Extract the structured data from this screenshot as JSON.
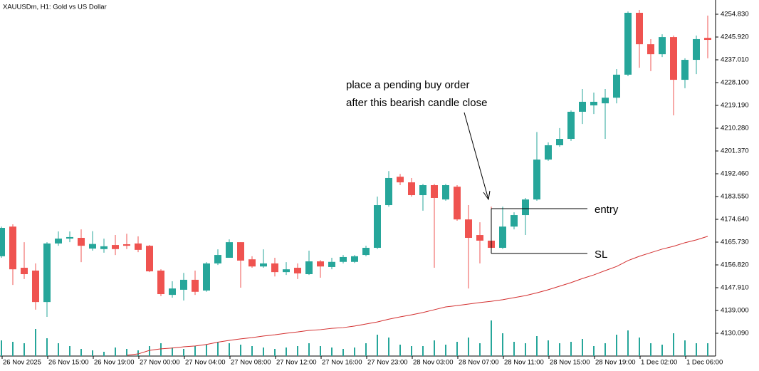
{
  "chart_data": {
    "type": "candlestick",
    "title": "XAUUSDm, H1:  Gold vs US Dollar",
    "up_color": "#26a69a",
    "down_color": "#ef5350",
    "categories": [
      "26 Nov 2025",
      null,
      null,
      null,
      "26 Nov 15:00",
      null,
      null,
      null,
      "26 Nov 19:00",
      null,
      null,
      null,
      "27 Nov 00:00",
      null,
      null,
      null,
      "27 Nov 04:00",
      null,
      null,
      null,
      "27 Nov 08:00",
      null,
      null,
      null,
      "27 Nov 12:00",
      null,
      null,
      null,
      "27 Nov 16:00",
      null,
      null,
      null,
      "27 Nov 23:00",
      null,
      null,
      null,
      "28 Nov 03:00",
      null,
      null,
      null,
      "28 Nov 07:00",
      null,
      null,
      null,
      "28 Nov 11:00",
      null,
      null,
      null,
      "28 Nov 15:00",
      null,
      null,
      null,
      "28 Nov 19:00",
      null,
      null,
      null,
      "1 Dec 02:00",
      null,
      null,
      null,
      "1 Dec 06:00",
      null,
      null
    ],
    "open": [
      4160.2,
      4171.8,
      4155.7,
      4154.6,
      4142.3,
      4165.2,
      4167.1,
      4167.4,
      4163.2,
      4163.0,
      4164.6,
      4164.9,
      4165.2,
      4164.3,
      4154.6,
      4145.1,
      4147.1,
      4151.0,
      4146.8,
      4157.4,
      4159.6,
      4165.7,
      4159.0,
      4156.2,
      4157.4,
      4154.0,
      4155.7,
      4153.2,
      4158.2,
      4156.0,
      4158.0,
      4158.0,
      4160.7,
      4163.5,
      4180.2,
      4191.3,
      4189.1,
      4184.1,
      4188.0,
      4182.4,
      4187.4,
      4174.6,
      4168.5,
      4166.3,
      4163.5,
      4171.8,
      4176.3,
      4182.4,
      4198.0,
      4203.6,
      4206.1,
      4216.7,
      4219.2,
      4220.0,
      4222.2,
      4231.2,
      4255.4,
      4243.1,
      4239.2,
      4245.9,
      4229.2,
      4237.0,
      4245.6
    ],
    "high": [
      4171.8,
      4172.7,
      4165.7,
      4157.4,
      4165.7,
      4169.9,
      4169.9,
      4170.7,
      4170.0,
      4167.1,
      4168.5,
      4169.0,
      4168.0,
      4164.6,
      4155.1,
      4150.4,
      4153.7,
      4154.6,
      4157.9,
      4162.9,
      4166.8,
      4165.7,
      4160.2,
      4162.9,
      4159.6,
      4157.9,
      4157.4,
      4162.4,
      4158.7,
      4159.6,
      4160.7,
      4160.7,
      4164.3,
      4183.5,
      4193.5,
      4192.4,
      4190.8,
      4188.5,
      4188.5,
      4188.5,
      4188.0,
      4180.2,
      4173.5,
      4179.6,
      4179.6,
      4177.4,
      4183.0,
      4208.8,
      4204.7,
      4210.3,
      4217.2,
      4225.6,
      4224.2,
      4225.6,
      4233.4,
      4255.9,
      4256.5,
      4245.1,
      4247.0,
      4246.5,
      4237.6,
      4246.5,
      4254.3
    ],
    "low": [
      4159.6,
      4149.0,
      4151.3,
      4139.3,
      4136.5,
      4164.3,
      4165.7,
      4157.9,
      4162.4,
      4161.6,
      4160.7,
      4163.0,
      4161.8,
      4154.0,
      4144.6,
      4144.0,
      4142.9,
      4145.1,
      4146.3,
      4156.8,
      4159.6,
      4147.9,
      4155.7,
      4155.7,
      4152.3,
      4152.9,
      4151.3,
      4152.9,
      4151.8,
      4155.1,
      4157.4,
      4157.6,
      4160.2,
      4163.0,
      4179.6,
      4188.0,
      4183.5,
      4178.0,
      4155.7,
      4181.9,
      4174.1,
      4147.6,
      4157.4,
      4163.0,
      4163.0,
      4170.7,
      4168.5,
      4181.9,
      4197.5,
      4203.0,
      4205.3,
      4211.9,
      4215.8,
      4206.1,
      4220.0,
      4230.6,
      4233.9,
      4232.6,
      4238.1,
      4215.3,
      4225.9,
      4231.4,
      4237.6
    ],
    "close": [
      4171.3,
      4155.1,
      4153.2,
      4142.3,
      4165.2,
      4167.1,
      4167.7,
      4164.3,
      4165.0,
      4164.1,
      4163.0,
      4164.3,
      4162.7,
      4154.3,
      4145.4,
      4147.6,
      4151.0,
      4146.3,
      4157.4,
      4160.7,
      4165.7,
      4158.5,
      4156.2,
      4157.4,
      4154.0,
      4155.1,
      4153.5,
      4158.2,
      4156.2,
      4158.0,
      4159.9,
      4160.2,
      4163.5,
      4180.2,
      4190.8,
      4189.1,
      4184.1,
      4188.0,
      4183.0,
      4188.0,
      4174.6,
      4167.4,
      4166.3,
      4163.5,
      4171.8,
      4176.3,
      4182.4,
      4198.0,
      4203.6,
      4206.1,
      4216.7,
      4220.6,
      4220.6,
      4222.2,
      4231.2,
      4255.4,
      4243.1,
      4239.2,
      4245.9,
      4229.2,
      4237.0,
      4245.1,
      4244.8
    ],
    "volume": [
      22,
      20,
      18,
      38,
      25,
      18,
      14,
      10,
      8,
      6,
      12,
      10,
      8,
      14,
      18,
      12,
      10,
      14,
      16,
      20,
      18,
      16,
      14,
      12,
      10,
      12,
      14,
      18,
      14,
      12,
      10,
      12,
      18,
      30,
      26,
      16,
      14,
      14,
      22,
      16,
      20,
      26,
      18,
      50,
      32,
      20,
      18,
      28,
      22,
      18,
      20,
      24,
      14,
      18,
      30,
      36,
      26,
      18,
      16,
      32,
      22,
      18,
      18
    ],
    "volume_color": "#26a69a",
    "ma": {
      "color": "#d32f2f",
      "values": [
        null,
        null,
        null,
        null,
        null,
        null,
        null,
        null,
        null,
        null,
        null,
        4121.5,
        4122.0,
        4123.4,
        4124.0,
        4124.3,
        4124.8,
        4125.1,
        4125.7,
        4126.6,
        4127.3,
        4127.9,
        4128.4,
        4129.0,
        4129.5,
        4130.1,
        4130.6,
        4131.2,
        4131.5,
        4132.0,
        4132.3,
        4132.9,
        4133.7,
        4134.5,
        4135.6,
        4136.5,
        4137.3,
        4138.2,
        4139.3,
        4140.4,
        4140.9,
        4141.5,
        4142.1,
        4142.6,
        4143.2,
        4144.0,
        4144.8,
        4145.9,
        4147.1,
        4148.5,
        4149.9,
        4151.5,
        4152.9,
        4154.6,
        4156.2,
        4158.5,
        4160.2,
        4161.6,
        4163.0,
        4164.1,
        4165.5,
        4166.6,
        4168.0
      ]
    },
    "ylim": [
      4121.18,
      4260.4
    ],
    "yticks": [
      {
        "value": 4254.83,
        "label": "4254.830"
      },
      {
        "value": 4245.92,
        "label": "4245.920"
      },
      {
        "value": 4237.01,
        "label": "4237.010"
      },
      {
        "value": 4228.1,
        "label": "4228.100"
      },
      {
        "value": 4219.19,
        "label": "4219.190"
      },
      {
        "value": 4210.28,
        "label": "4210.280"
      },
      {
        "value": 4201.37,
        "label": "4201.370"
      },
      {
        "value": 4192.46,
        "label": "4192.460"
      },
      {
        "value": 4183.55,
        "label": "4183.550"
      },
      {
        "value": 4174.64,
        "label": "4174.640"
      },
      {
        "value": 4165.73,
        "label": "4165.730"
      },
      {
        "value": 4156.82,
        "label": "4156.820"
      },
      {
        "value": 4147.91,
        "label": "4147.910"
      },
      {
        "value": 4139.0,
        "label": "4139.000"
      },
      {
        "value": 4130.09,
        "label": "4130.090"
      }
    ],
    "annotations": [
      "place a pending buy order",
      "after this bearish candle close"
    ],
    "levels": [
      {
        "label": "entry",
        "value": 4178.8
      },
      {
        "label": "SL",
        "value": 4161.3
      }
    ]
  }
}
